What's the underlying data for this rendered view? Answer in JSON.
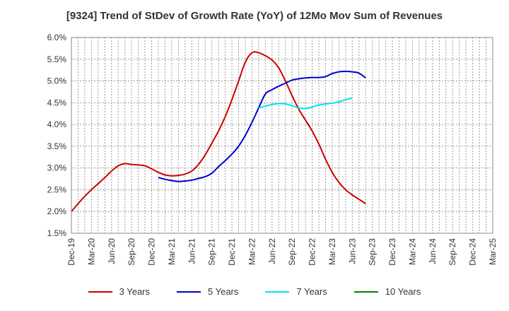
{
  "chart_data": {
    "type": "line",
    "title": "[9324]  Trend of StDev of Growth Rate (YoY) of 12Mo Mov Sum of Revenues",
    "xlabel": "",
    "ylabel": "",
    "ylim": [
      1.5,
      6.0
    ],
    "grid": true,
    "legend_position": "bottom",
    "x_ticks": [
      "Dec-19",
      "Mar-20",
      "Jun-20",
      "Sep-20",
      "Dec-20",
      "Mar-21",
      "Jun-21",
      "Sep-21",
      "Dec-21",
      "Mar-22",
      "Jun-22",
      "Sep-22",
      "Dec-22",
      "Mar-23",
      "Jun-23",
      "Sep-23",
      "Dec-23",
      "Mar-24",
      "Jun-24",
      "Sep-24",
      "Dec-24",
      "Mar-25"
    ],
    "y_ticks": [
      "1.5%",
      "2.0%",
      "2.5%",
      "3.0%",
      "3.5%",
      "4.0%",
      "4.5%",
      "5.0%",
      "5.5%",
      "6.0%"
    ],
    "y_tick_values": [
      1.5,
      2.0,
      2.5,
      3.0,
      3.5,
      4.0,
      4.5,
      5.0,
      5.5,
      6.0
    ],
    "series": [
      {
        "name": "3 Years",
        "color": "#cc0000",
        "start_index": 0,
        "values": [
          2.0,
          2.18,
          2.35,
          2.5,
          2.64,
          2.78,
          2.93,
          3.05,
          3.1,
          3.08,
          3.07,
          3.05,
          2.98,
          2.9,
          2.84,
          2.82,
          2.83,
          2.86,
          2.93,
          3.08,
          3.3,
          3.57,
          3.85,
          4.18,
          4.57,
          5.0,
          5.43,
          5.65,
          5.65,
          5.58,
          5.48,
          5.3,
          5.0,
          4.66,
          4.35,
          4.1,
          3.85,
          3.55,
          3.2,
          2.9,
          2.67,
          2.5,
          2.38,
          2.28,
          2.18
        ]
      },
      {
        "name": "5 Years",
        "color": "#0000cc",
        "start_index": 13,
        "values": [
          2.78,
          2.74,
          2.71,
          2.69,
          2.7,
          2.72,
          2.76,
          2.8,
          2.88,
          3.03,
          3.17,
          3.32,
          3.5,
          3.75,
          4.05,
          4.38,
          4.7,
          4.8,
          4.88,
          4.95,
          5.02,
          5.05,
          5.07,
          5.08,
          5.08,
          5.1,
          5.17,
          5.21,
          5.22,
          5.21,
          5.18,
          5.07
        ]
      },
      {
        "name": "7 Years",
        "color": "#00e5e5",
        "start_index": 28,
        "values": [
          4.38,
          4.42,
          4.46,
          4.48,
          4.47,
          4.43,
          4.38,
          4.37,
          4.4,
          4.45,
          4.47,
          4.49,
          4.52,
          4.57,
          4.61
        ]
      },
      {
        "name": "10 Years",
        "color": "#008000",
        "start_index": 0,
        "values": []
      }
    ]
  }
}
